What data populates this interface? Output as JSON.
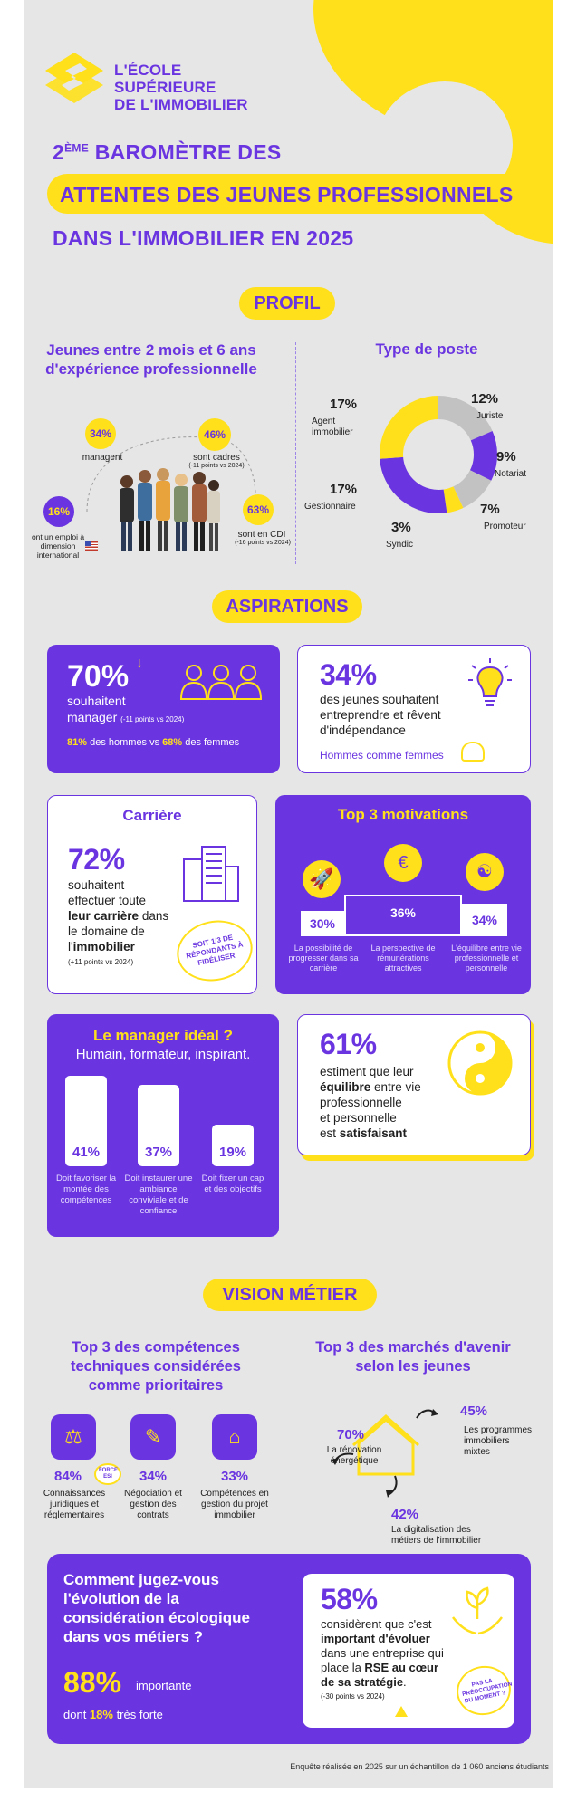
{
  "logo": {
    "line1": "L'ÉCOLE",
    "line2": "SUPÉRIEURE",
    "line3": "DE L'IMMOBILIER"
  },
  "title": {
    "line1_sup": "ÈME",
    "line1_num": "2",
    "line1_rest": " BAROMÈTRE DES",
    "line2": "ATTENTES DES JEUNES PROFESSIONNELS",
    "line3": "DANS L'IMMOBILIER EN 2025"
  },
  "sections": {
    "profil": "PROFIL",
    "aspirations": "ASPIRATIONS",
    "vision": "VISION MÉTIER"
  },
  "profil": {
    "left_title": "Jeunes entre 2 mois et 6 ans d'expérience professionnelle",
    "stats": [
      {
        "value": "34%",
        "label": "managent",
        "note": ""
      },
      {
        "value": "46%",
        "label": "sont cadres",
        "note": "(-11 points vs 2024)"
      },
      {
        "value": "16%",
        "label": "ont un emploi à dimension international",
        "note": ""
      },
      {
        "value": "63%",
        "label": "sont en CDI",
        "note": "(-16 points vs 2024)"
      }
    ],
    "right_title": "Type de poste",
    "chart_data": {
      "type": "pie",
      "title": "Type de poste",
      "categories": [
        "Juriste",
        "Notariat",
        "Promoteur",
        "Syndic",
        "Gestionnaire",
        "Agent immobilier"
      ],
      "values": [
        12,
        9,
        7,
        3,
        17,
        17
      ],
      "colors": [
        "#c2c2c2",
        "#6a35e0",
        "#c2c2c2",
        "#ffe01b",
        "#6a35e0",
        "#ffe01b"
      ],
      "value_labels": [
        "12%",
        "9%",
        "7%",
        "3%",
        "17%",
        "17%"
      ]
    }
  },
  "asp": {
    "c1": {
      "value": "70%",
      "l1": "souhaitent",
      "l2": "manager",
      "note": "(-11 points vs 2024)",
      "h": "81%",
      "h_text": " des hommes vs ",
      "f": "68%",
      "f_text": " des femmes"
    },
    "c2": {
      "value": "34%",
      "l1": "des jeunes souhaitent",
      "l2": "entreprendre et rêvent",
      "l3": "d'indépendance",
      "foot": "Hommes comme femmes"
    },
    "c3": {
      "title": "Carrière",
      "value": "72%",
      "l1": "souhaitent",
      "l2": "effectuer toute",
      "l3a": "leur carrière",
      "l3b": " dans",
      "l4": "le domaine de",
      "l5a": "l'",
      "l5b": "immobilier",
      "note": "(+11 points vs 2024)",
      "stamp": "SOIT 1/3 DE RÉPONDANTS À FIDÉLISER"
    },
    "c4": {
      "title": "Top 3 motivations",
      "items": [
        {
          "value": "30%",
          "label": "La possibilité de progresser dans sa carrière"
        },
        {
          "value": "36%",
          "label": "La perspective de rémunérations attractives"
        },
        {
          "value": "34%",
          "label": "L'équilibre entre vie professionnelle et personnelle"
        }
      ]
    },
    "c5": {
      "title": "Le manager idéal ?",
      "subtitle": "Humain, formateur, inspirant.",
      "items": [
        {
          "value": "41%",
          "label": "Doit favoriser la montée des compétences"
        },
        {
          "value": "37%",
          "label": "Doit instaurer une ambiance conviviale et de confiance"
        },
        {
          "value": "19%",
          "label": "Doit fixer un cap et des objectifs"
        }
      ]
    },
    "c6": {
      "value": "61%",
      "l1": "estiment que leur",
      "l2a": "équilibre",
      "l2b": " entre vie",
      "l3": "professionnelle",
      "l4": "et personnelle",
      "l5a": "est ",
      "l5b": "satisfaisant"
    }
  },
  "vision": {
    "left_title": "Top 3 des compétences techniques considérées comme prioritaires",
    "skills": [
      {
        "value": "84%",
        "label": "Connaissances juridiques et réglementaires"
      },
      {
        "value": "34%",
        "label": "Négociation et gestion des contrats"
      },
      {
        "value": "33%",
        "label": "Compétences en gestion du projet immobilier"
      }
    ],
    "force": "FORCE ESI",
    "right_title": "Top 3 des marchés d'avenir selon les jeunes",
    "markets": [
      {
        "value": "70%",
        "label": "La rénovation énergétique"
      },
      {
        "value": "45%",
        "label": "Les programmes immobiliers mixtes"
      },
      {
        "value": "42%",
        "label": "La digitalisation des métiers de l'immobilier"
      }
    ]
  },
  "eco": {
    "question": "Comment jugez-vous l'évolution de la considération écologique dans vos métiers ?",
    "value": "88%",
    "value_label": "importante",
    "l2a": "dont ",
    "l2b": "18%",
    "l2c": " très forte",
    "card": {
      "value": "58%",
      "l1": "considèrent que c'est",
      "l2": "important d'évoluer",
      "l3": "dans une entreprise qui",
      "l4a": "place la ",
      "l4b": "RSE au cœur",
      "l5": "de sa stratégie",
      "l5b": ".",
      "note": "(-30 points vs 2024)",
      "stamp": "PAS LA PRÉOCCUPATION DU MOMENT ?"
    }
  },
  "footer": "Enquête réalisée en 2025 sur un échantillon de 1 060 anciens étudiants"
}
